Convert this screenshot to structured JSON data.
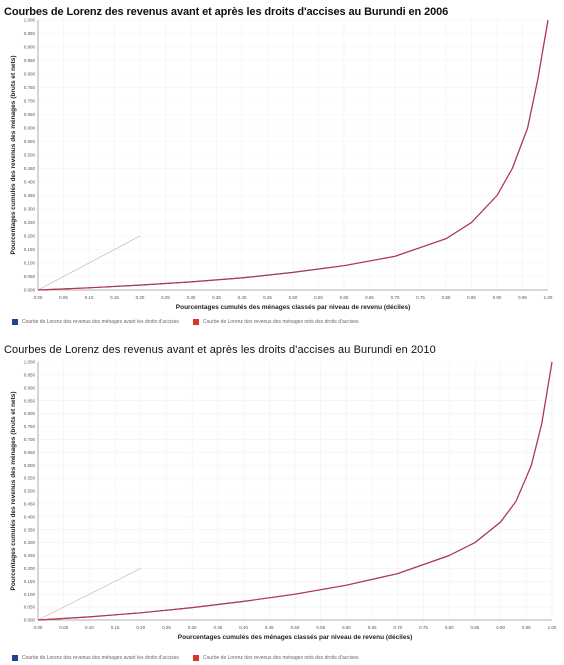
{
  "colors": {
    "before_series": "#1f3f9a",
    "after_series": "#e0302a",
    "equality_line": "#c8a8a0",
    "grid": "#f1f1f1"
  },
  "chart_data": [
    {
      "type": "line",
      "title": "Courbes de Lorenz des revenus avant et après les droits d'accises au Burundi en 2006",
      "xlabel": "Pourcentages cumulés des ménages classés par niveau de revenu (déciles)",
      "ylabel": "Pourcentages cumulés des revenus des ménages (bruts et nets)",
      "xlim": [
        0,
        1
      ],
      "ylim": [
        0,
        1
      ],
      "x_ticks": [
        "0.00",
        "0.05",
        "0.10",
        "0.15",
        "0.20",
        "0.25",
        "0.30",
        "0.35",
        "0.40",
        "0.45",
        "0.50",
        "0.55",
        "0.60",
        "0.65",
        "0.70",
        "0.75",
        "0.80",
        "0.85",
        "0.90",
        "0.95",
        "1.00"
      ],
      "y_ticks": [
        "0.000",
        "0.050",
        "0.100",
        "0.150",
        "0.200",
        "0.250",
        "0.300",
        "0.350",
        "0.400",
        "0.450",
        "0.500",
        "0.550",
        "0.600",
        "0.650",
        "0.700",
        "0.750",
        "0.800",
        "0.850",
        "0.900",
        "0.950",
        "1.000"
      ],
      "legend_position": "bottom",
      "series": [
        {
          "name": "Courbe de Lorenz des revenus des ménages avant les droits d'accises",
          "x": [
            0,
            0.1,
            0.2,
            0.3,
            0.4,
            0.5,
            0.6,
            0.7,
            0.8,
            0.85,
            0.9,
            0.93,
            0.96,
            0.98,
            1.0
          ],
          "y": [
            0,
            0.008,
            0.018,
            0.03,
            0.045,
            0.065,
            0.09,
            0.125,
            0.19,
            0.25,
            0.35,
            0.45,
            0.6,
            0.78,
            1.0
          ]
        },
        {
          "name": "Courbe de Lorenz des revenus des ménages nets des droits d'accises",
          "x": [
            0,
            0.1,
            0.2,
            0.3,
            0.4,
            0.5,
            0.6,
            0.7,
            0.8,
            0.85,
            0.9,
            0.93,
            0.96,
            0.98,
            1.0
          ],
          "y": [
            0,
            0.008,
            0.018,
            0.03,
            0.045,
            0.065,
            0.09,
            0.125,
            0.19,
            0.25,
            0.35,
            0.45,
            0.6,
            0.78,
            1.0
          ]
        }
      ]
    },
    {
      "type": "line",
      "title": "Courbes de Lorenz des revenus avant et après les droits d'accises au Burundi en 2010",
      "xlabel": "Pourcentages cumulés des ménages classés par niveau de revenu (déciles)",
      "ylabel": "Pourcentages cumulés des revenus des ménages (bruts et nets)",
      "xlim": [
        0,
        1
      ],
      "ylim": [
        0,
        1
      ],
      "x_ticks": [
        "0.00",
        "0.05",
        "0.10",
        "0.15",
        "0.20",
        "0.25",
        "0.30",
        "0.35",
        "0.40",
        "0.45",
        "0.50",
        "0.55",
        "0.60",
        "0.65",
        "0.70",
        "0.75",
        "0.80",
        "0.85",
        "0.90",
        "0.95",
        "1.00"
      ],
      "y_ticks": [
        "0.000",
        "0.050",
        "0.100",
        "0.150",
        "0.200",
        "0.250",
        "0.300",
        "0.350",
        "0.400",
        "0.450",
        "0.500",
        "0.550",
        "0.600",
        "0.650",
        "0.700",
        "0.750",
        "0.800",
        "0.850",
        "0.900",
        "0.950",
        "1.000"
      ],
      "legend_position": "bottom",
      "series": [
        {
          "name": "Courbe de Lorenz des revenus des ménages avant les droits d'accises",
          "x": [
            0,
            0.1,
            0.2,
            0.3,
            0.4,
            0.5,
            0.6,
            0.7,
            0.8,
            0.85,
            0.9,
            0.93,
            0.96,
            0.98,
            1.0
          ],
          "y": [
            0,
            0.012,
            0.028,
            0.048,
            0.072,
            0.1,
            0.135,
            0.18,
            0.25,
            0.3,
            0.38,
            0.46,
            0.6,
            0.76,
            1.0
          ]
        },
        {
          "name": "Courbe de Lorenz des revenus des ménages nets des droits d'accises",
          "x": [
            0,
            0.1,
            0.2,
            0.3,
            0.4,
            0.5,
            0.6,
            0.7,
            0.8,
            0.85,
            0.9,
            0.93,
            0.96,
            0.98,
            1.0
          ],
          "y": [
            0,
            0.012,
            0.028,
            0.048,
            0.072,
            0.1,
            0.135,
            0.18,
            0.25,
            0.3,
            0.38,
            0.46,
            0.6,
            0.76,
            1.0
          ]
        }
      ]
    }
  ]
}
